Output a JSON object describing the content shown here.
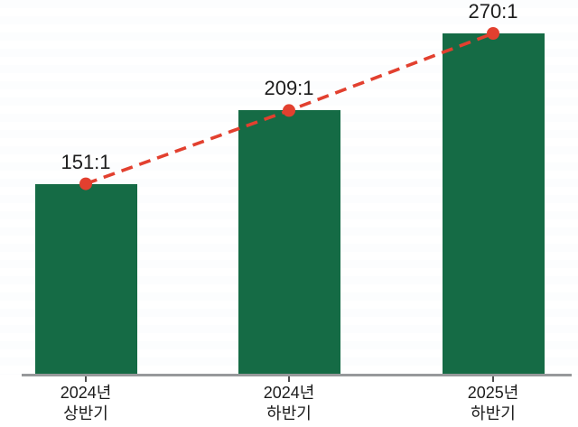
{
  "chart_data": {
    "type": "bar",
    "title": "",
    "xlabel": "",
    "ylabel": "",
    "categories": [
      {
        "line1": "2024년",
        "line2": "상반기"
      },
      {
        "line1": "2024년",
        "line2": "하반기"
      },
      {
        "line1": "2025년",
        "line2": "하반기"
      }
    ],
    "values": [
      151,
      209,
      270
    ],
    "value_labels": [
      "151:1",
      "209:1",
      "270:1"
    ],
    "ylim": [
      0,
      270
    ],
    "grid": "none-visible (faint horizontal banding only)",
    "legend": "none",
    "overlay_line": {
      "type": "dashed-line-with-round-markers",
      "series_values": [
        151,
        209,
        270
      ],
      "connects": "tops of bars"
    },
    "colors": {
      "bar": "#156b45",
      "line": "#e2402f",
      "marker": "#e2402f",
      "axis": "#97999b",
      "tick": "#4d4d4d",
      "text": "#1c1c1c"
    }
  }
}
